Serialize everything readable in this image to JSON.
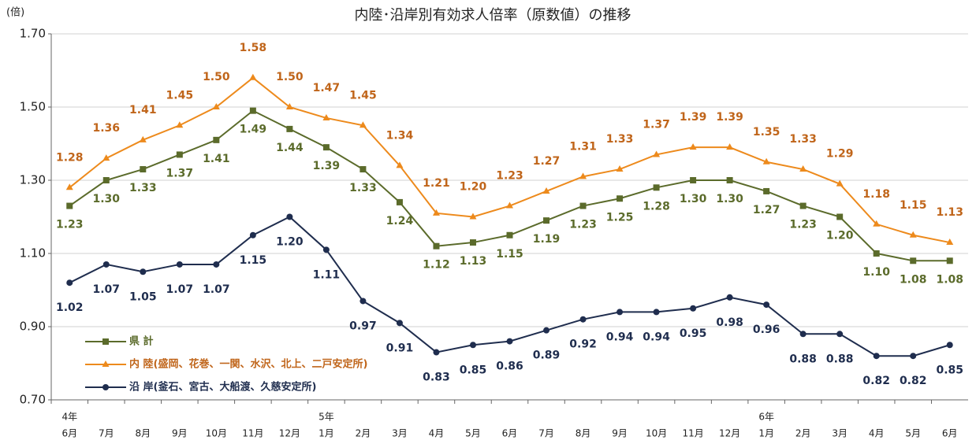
{
  "chart_data": {
    "type": "line",
    "title": "内陸･沿岸別有効求人倍率（原数値）の推移",
    "y_unit_label": "(倍)",
    "categories": [
      "6月",
      "7月",
      "8月",
      "9月",
      "10月",
      "11月",
      "12月",
      "1月",
      "2月",
      "3月",
      "4月",
      "5月",
      "6月",
      "7月",
      "8月",
      "9月",
      "10月",
      "11月",
      "12月",
      "1月",
      "2月",
      "3月",
      "4月",
      "5月",
      "6月"
    ],
    "year_labels": [
      "4年",
      null,
      null,
      null,
      null,
      null,
      null,
      "5年",
      null,
      null,
      null,
      null,
      null,
      null,
      null,
      null,
      null,
      null,
      null,
      "6年",
      null,
      null,
      null,
      null,
      null
    ],
    "ylim": [
      0.7,
      1.7
    ],
    "yticks": [
      {
        "value": 0.7,
        "label": "0.70"
      },
      {
        "value": 0.9,
        "label": "0.90"
      },
      {
        "value": 1.1,
        "label": "1.10"
      },
      {
        "value": 1.3,
        "label": "1.30"
      },
      {
        "value": 1.5,
        "label": "1.50"
      },
      {
        "value": 1.7,
        "label": "1.70"
      }
    ],
    "grid": true,
    "legend": "lower left",
    "series": [
      {
        "name": "県 計",
        "color": "#5b6b2b",
        "label_color": "#5b6b2b",
        "marker": "square",
        "values": [
          1.23,
          1.3,
          1.33,
          1.37,
          1.41,
          1.49,
          1.44,
          1.39,
          1.33,
          1.24,
          1.12,
          1.13,
          1.15,
          1.19,
          1.23,
          1.25,
          1.28,
          1.3,
          1.3,
          1.27,
          1.23,
          1.2,
          1.1,
          1.08,
          1.08
        ],
        "value_labels": [
          "1.23",
          "1.30",
          "1.33",
          "1.37",
          "1.41",
          "1.49",
          "1.44",
          "1.39",
          "1.33",
          "1.24",
          "1.12",
          "1.13",
          "1.15",
          "1.19",
          "1.23",
          "1.25",
          "1.28",
          "1.30",
          "1.30",
          "1.27",
          "1.23",
          "1.20",
          "1.10",
          "1.08",
          "1.08"
        ]
      },
      {
        "name": "内 陸(盛岡、花巻、一関、水沢、北上、二戸安定所)",
        "color": "#ed8a1c",
        "label_color": "#c0651a",
        "marker": "triangle",
        "values": [
          1.28,
          1.36,
          1.41,
          1.45,
          1.5,
          1.58,
          1.5,
          1.47,
          1.45,
          1.34,
          1.21,
          1.2,
          1.23,
          1.27,
          1.31,
          1.33,
          1.37,
          1.39,
          1.39,
          1.35,
          1.33,
          1.29,
          1.18,
          1.15,
          1.13
        ],
        "value_labels": [
          "1.28",
          "1.36",
          "1.41",
          "1.45",
          "1.50",
          "1.58",
          "1.50",
          "1.47",
          "1.45",
          "1.34",
          "1.21",
          "1.20",
          "1.23",
          "1.27",
          "1.31",
          "1.33",
          "1.37",
          "1.39",
          "1.39",
          "1.35",
          "1.33",
          "1.29",
          "1.18",
          "1.15",
          "1.13"
        ]
      },
      {
        "name": "沿 岸(釜石、宮古、大船渡、久慈安定所)",
        "color": "#1f2d4e",
        "label_color": "#1f2d4e",
        "marker": "circle",
        "values": [
          1.02,
          1.07,
          1.05,
          1.07,
          1.07,
          1.15,
          1.2,
          1.11,
          0.97,
          0.91,
          0.83,
          0.85,
          0.86,
          0.89,
          0.92,
          0.94,
          0.94,
          0.95,
          0.98,
          0.96,
          0.88,
          0.88,
          0.82,
          0.82,
          0.85
        ],
        "value_labels": [
          "1.02",
          "1.07",
          "1.05",
          "1.07",
          "1.07",
          "1.15",
          "1.20",
          "1.11",
          "0.97",
          "0.91",
          "0.83",
          "0.85",
          "0.86",
          "0.89",
          "0.92",
          "0.94",
          "0.94",
          "0.95",
          "0.98",
          "0.96",
          "0.88",
          "0.88",
          "0.82",
          "0.82",
          "0.85"
        ]
      }
    ]
  }
}
